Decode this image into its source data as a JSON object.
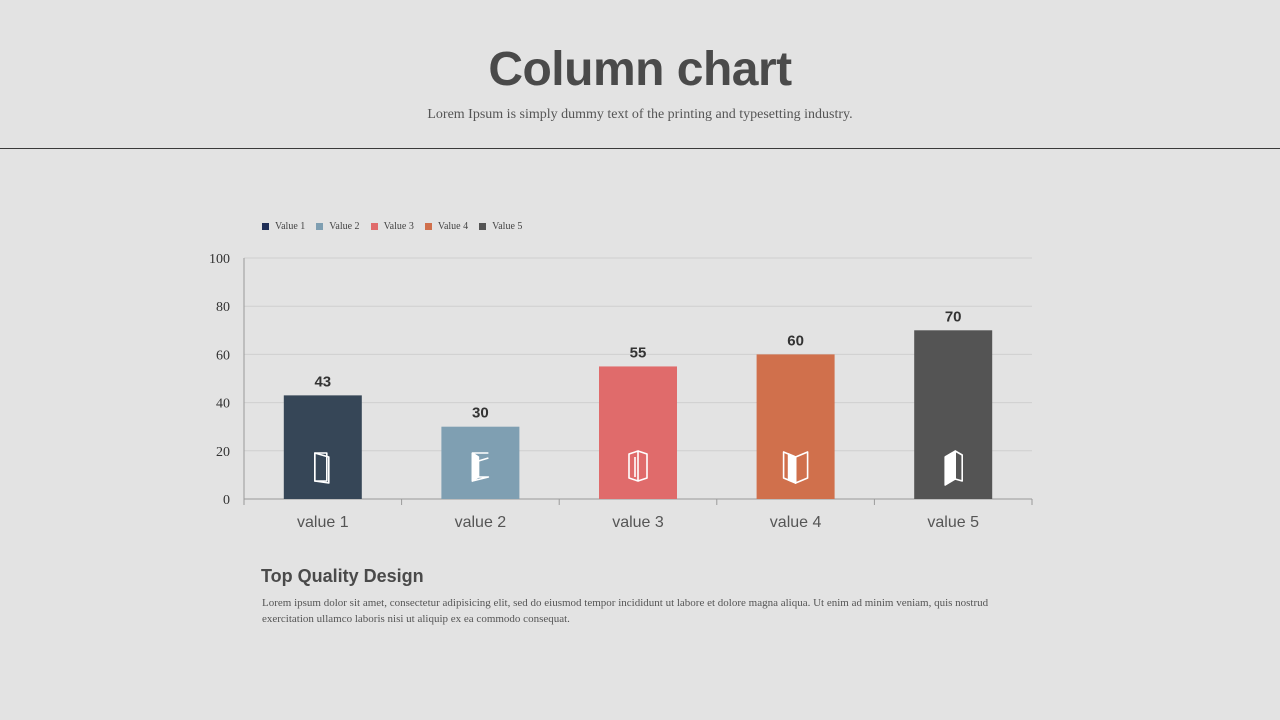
{
  "header": {
    "title": "Column chart",
    "subtitle": "Lorem Ipsum is simply dummy text of the printing and typesetting industry."
  },
  "chart_data": {
    "type": "bar",
    "categories": [
      "value 1",
      "value 2",
      "value 3",
      "value 4",
      "value 5"
    ],
    "values": [
      43,
      30,
      55,
      60,
      70
    ],
    "colors": [
      "#364657",
      "#7f9fb2",
      "#e06b6b",
      "#d0704c",
      "#545454"
    ],
    "legend": [
      {
        "name": "Value 1",
        "color": "#1f2f57"
      },
      {
        "name": "Value 2",
        "color": "#7f9fb2"
      },
      {
        "name": "Value 3",
        "color": "#e06b6b"
      },
      {
        "name": "Value 4",
        "color": "#d0704c"
      },
      {
        "name": "Value 5",
        "color": "#545454"
      }
    ],
    "legend_position": "top-left",
    "icons": [
      "open-door-icon",
      "door-ajar-icon",
      "window-icon",
      "open-book-icon",
      "book-icon"
    ],
    "yticks": [
      "0",
      "20",
      "40",
      "60",
      "80",
      "100"
    ],
    "ylim": [
      0,
      100
    ],
    "grid": true,
    "title": "",
    "xlabel": "",
    "ylabel": ""
  },
  "footer": {
    "heading": "Top Quality Design",
    "text": "Lorem ipsum dolor sit amet, consectetur adipisicing elit, sed do eiusmod tempor incididunt ut labore et dolore magna aliqua. Ut enim ad minim veniam, quis nostrud exercitation ullamco laboris nisi ut aliquip ex ea commodo consequat."
  }
}
